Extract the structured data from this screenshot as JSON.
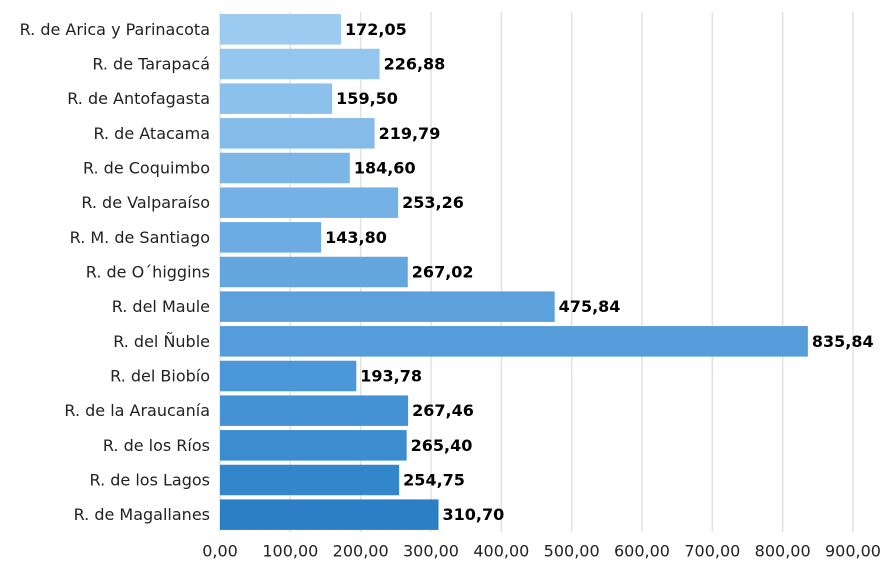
{
  "chart_data": {
    "type": "hbar",
    "categories": [
      "R. de Arica y Parinacota",
      "R. de Tarapacá",
      "R. de Antofagasta",
      "R. de Atacama",
      "R. de Coquimbo",
      "R. de Valparaíso",
      "R. M. de Santiago",
      "R. de O´higgins",
      "R. del Maule",
      "R. del Ñuble",
      "R. del Biobío",
      "R. de la Araucanía",
      "R. de los Ríos",
      "R. de los Lagos",
      "R. de Magallanes"
    ],
    "values": [
      172.05,
      226.88,
      159.5,
      219.79,
      184.6,
      253.26,
      143.8,
      267.02,
      475.84,
      835.84,
      193.78,
      267.46,
      265.4,
      254.75,
      310.7
    ],
    "value_labels": [
      "172,05",
      "226,88",
      "159,50",
      "219,79",
      "184,60",
      "253,26",
      "143,80",
      "267,02",
      "475,84",
      "835,84",
      "193,78",
      "267,46",
      "265,40",
      "254,75",
      "310,70"
    ],
    "colors": [
      "#9ccbf1",
      "#94c6ee",
      "#8cc1ec",
      "#84bbe9",
      "#7cb6e7",
      "#74b1e4",
      "#6cace2",
      "#64a7df",
      "#5ca1dc",
      "#549cda",
      "#4c97d7",
      "#4492d4",
      "#3c8cd0",
      "#3486cb",
      "#2c7fc5"
    ],
    "xlim": [
      0,
      900
    ],
    "xticks": [
      {
        "value": 0,
        "label": "0,00"
      },
      {
        "value": 100,
        "label": "100,00"
      },
      {
        "value": 200,
        "label": "200,00"
      },
      {
        "value": 300,
        "label": "300,00"
      },
      {
        "value": 400,
        "label": "400,00"
      },
      {
        "value": 500,
        "label": "500,00"
      },
      {
        "value": 600,
        "label": "600,00"
      },
      {
        "value": 700,
        "label": "700,00"
      },
      {
        "value": 800,
        "label": "800,00"
      },
      {
        "value": 900,
        "label": "900,00"
      }
    ],
    "grid": true
  }
}
